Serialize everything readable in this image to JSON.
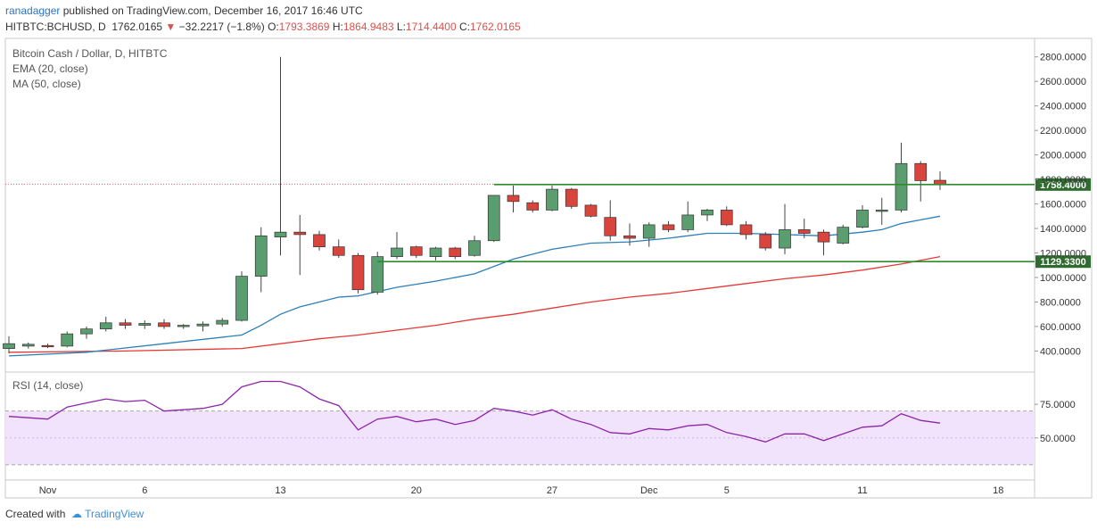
{
  "header": {
    "author": "ranadagger",
    "published_text": "published on TradingView.com, December 16, 2017 16:46 UTC",
    "symbol": "HITBTC:BCHUSD, D",
    "last": "1762.0165",
    "change_arrow": "▼",
    "change": "−32.2217 (−1.8%)",
    "o_label": "O:",
    "o_value": "1793.3869",
    "h_label": "H:",
    "h_value": "1864.9483",
    "l_label": "L:",
    "l_value": "1714.4400",
    "c_label": "C:",
    "c_value": "1762.0165"
  },
  "footer": {
    "created_with": "Created with",
    "brand": "TradingView"
  },
  "colors": {
    "up": "#5a9e6f",
    "down": "#d9453d",
    "ema": "#2c7fb8",
    "ma": "#e53935",
    "rsi": "#8e24aa",
    "level": "#2e8b2e"
  },
  "chart_data": [
    {
      "type": "candlestick",
      "title": "Bitcoin Cash / Dollar, D, HITBTC",
      "indicators": [
        "EMA (20, close)",
        "MA (50, close)"
      ],
      "ylim": [
        250,
        2900
      ],
      "ytick_values": [
        400,
        600,
        800,
        1000,
        1200,
        1400,
        1600,
        1800,
        2000,
        2200,
        2400,
        2600,
        2800
      ],
      "ytick_labels": [
        "400.0000",
        "600.0000",
        "800.0000",
        "1000.0000",
        "1200.0000",
        "1400.0000",
        "1600.0000",
        "1800.0000",
        "2000.0000",
        "2200.0000",
        "2400.0000",
        "2600.0000",
        "2800.0000"
      ],
      "xtick_labels": [
        "Nov",
        "6",
        "13",
        "20",
        "27",
        "Dec",
        "5",
        "11",
        "18"
      ],
      "xtick_days": [
        2,
        7,
        14,
        21,
        28,
        33,
        37,
        44,
        51
      ],
      "candles": [
        {
          "d": 0,
          "o": 420,
          "h": 520,
          "l": 380,
          "c": 460
        },
        {
          "d": 1,
          "o": 440,
          "h": 470,
          "l": 420,
          "c": 455
        },
        {
          "d": 2,
          "o": 445,
          "h": 460,
          "l": 425,
          "c": 435
        },
        {
          "d": 3,
          "o": 440,
          "h": 560,
          "l": 430,
          "c": 540
        },
        {
          "d": 4,
          "o": 540,
          "h": 600,
          "l": 500,
          "c": 580
        },
        {
          "d": 5,
          "o": 580,
          "h": 680,
          "l": 560,
          "c": 630
        },
        {
          "d": 6,
          "o": 630,
          "h": 660,
          "l": 580,
          "c": 610
        },
        {
          "d": 7,
          "o": 610,
          "h": 650,
          "l": 580,
          "c": 625
        },
        {
          "d": 8,
          "o": 630,
          "h": 660,
          "l": 580,
          "c": 600
        },
        {
          "d": 9,
          "o": 600,
          "h": 620,
          "l": 580,
          "c": 610
        },
        {
          "d": 10,
          "o": 605,
          "h": 640,
          "l": 560,
          "c": 620
        },
        {
          "d": 11,
          "o": 620,
          "h": 670,
          "l": 600,
          "c": 650
        },
        {
          "d": 12,
          "o": 650,
          "h": 1050,
          "l": 640,
          "c": 1010
        },
        {
          "d": 13,
          "o": 1010,
          "h": 1410,
          "l": 880,
          "c": 1340
        },
        {
          "d": 14,
          "o": 1330,
          "h": 2800,
          "l": 1180,
          "c": 1370
        },
        {
          "d": 15,
          "o": 1370,
          "h": 1510,
          "l": 1020,
          "c": 1350
        },
        {
          "d": 16,
          "o": 1350,
          "h": 1380,
          "l": 1220,
          "c": 1250
        },
        {
          "d": 17,
          "o": 1250,
          "h": 1310,
          "l": 1160,
          "c": 1180
        },
        {
          "d": 18,
          "o": 1180,
          "h": 1200,
          "l": 870,
          "c": 900
        },
        {
          "d": 19,
          "o": 880,
          "h": 1210,
          "l": 860,
          "c": 1170
        },
        {
          "d": 20,
          "o": 1170,
          "h": 1370,
          "l": 1150,
          "c": 1240
        },
        {
          "d": 21,
          "o": 1250,
          "h": 1260,
          "l": 1160,
          "c": 1180
        },
        {
          "d": 22,
          "o": 1170,
          "h": 1250,
          "l": 1140,
          "c": 1240
        },
        {
          "d": 23,
          "o": 1240,
          "h": 1250,
          "l": 1150,
          "c": 1170
        },
        {
          "d": 24,
          "o": 1180,
          "h": 1340,
          "l": 1170,
          "c": 1300
        },
        {
          "d": 25,
          "o": 1300,
          "h": 1670,
          "l": 1290,
          "c": 1670
        },
        {
          "d": 26,
          "o": 1670,
          "h": 1750,
          "l": 1530,
          "c": 1620
        },
        {
          "d": 27,
          "o": 1610,
          "h": 1630,
          "l": 1530,
          "c": 1550
        },
        {
          "d": 28,
          "o": 1550,
          "h": 1750,
          "l": 1540,
          "c": 1720
        },
        {
          "d": 29,
          "o": 1720,
          "h": 1730,
          "l": 1560,
          "c": 1580
        },
        {
          "d": 30,
          "o": 1590,
          "h": 1600,
          "l": 1490,
          "c": 1500
        },
        {
          "d": 31,
          "o": 1490,
          "h": 1630,
          "l": 1300,
          "c": 1340
        },
        {
          "d": 32,
          "o": 1340,
          "h": 1440,
          "l": 1260,
          "c": 1320
        },
        {
          "d": 33,
          "o": 1320,
          "h": 1450,
          "l": 1250,
          "c": 1430
        },
        {
          "d": 34,
          "o": 1430,
          "h": 1460,
          "l": 1370,
          "c": 1390
        },
        {
          "d": 35,
          "o": 1390,
          "h": 1620,
          "l": 1370,
          "c": 1510
        },
        {
          "d": 36,
          "o": 1510,
          "h": 1560,
          "l": 1460,
          "c": 1550
        },
        {
          "d": 37,
          "o": 1550,
          "h": 1580,
          "l": 1420,
          "c": 1430
        },
        {
          "d": 38,
          "o": 1430,
          "h": 1460,
          "l": 1310,
          "c": 1350
        },
        {
          "d": 39,
          "o": 1350,
          "h": 1370,
          "l": 1220,
          "c": 1240
        },
        {
          "d": 40,
          "o": 1240,
          "h": 1600,
          "l": 1190,
          "c": 1390
        },
        {
          "d": 41,
          "o": 1390,
          "h": 1480,
          "l": 1320,
          "c": 1360
        },
        {
          "d": 42,
          "o": 1370,
          "h": 1390,
          "l": 1180,
          "c": 1290
        },
        {
          "d": 43,
          "o": 1280,
          "h": 1430,
          "l": 1270,
          "c": 1410
        },
        {
          "d": 44,
          "o": 1410,
          "h": 1590,
          "l": 1400,
          "c": 1550
        },
        {
          "d": 45,
          "o": 1545,
          "h": 1650,
          "l": 1430,
          "c": 1550
        },
        {
          "d": 46,
          "o": 1550,
          "h": 2100,
          "l": 1530,
          "c": 1930
        },
        {
          "d": 47,
          "o": 1930,
          "h": 1950,
          "l": 1620,
          "c": 1790
        },
        {
          "d": 48,
          "o": 1793,
          "h": 1865,
          "l": 1714,
          "c": 1762
        }
      ],
      "ema20": [
        {
          "d": 0,
          "v": 360
        },
        {
          "d": 4,
          "v": 390
        },
        {
          "d": 8,
          "v": 460
        },
        {
          "d": 12,
          "v": 530
        },
        {
          "d": 13,
          "v": 610
        },
        {
          "d": 14,
          "v": 700
        },
        {
          "d": 15,
          "v": 760
        },
        {
          "d": 16,
          "v": 800
        },
        {
          "d": 17,
          "v": 840
        },
        {
          "d": 18,
          "v": 850
        },
        {
          "d": 20,
          "v": 920
        },
        {
          "d": 22,
          "v": 970
        },
        {
          "d": 24,
          "v": 1030
        },
        {
          "d": 26,
          "v": 1150
        },
        {
          "d": 28,
          "v": 1230
        },
        {
          "d": 30,
          "v": 1280
        },
        {
          "d": 32,
          "v": 1290
        },
        {
          "d": 34,
          "v": 1320
        },
        {
          "d": 36,
          "v": 1360
        },
        {
          "d": 38,
          "v": 1360
        },
        {
          "d": 40,
          "v": 1350
        },
        {
          "d": 42,
          "v": 1340
        },
        {
          "d": 44,
          "v": 1370
        },
        {
          "d": 45,
          "v": 1390
        },
        {
          "d": 46,
          "v": 1440
        },
        {
          "d": 47,
          "v": 1470
        },
        {
          "d": 48,
          "v": 1500
        }
      ],
      "ma50": [
        {
          "d": 0,
          "v": 390
        },
        {
          "d": 6,
          "v": 400
        },
        {
          "d": 12,
          "v": 420
        },
        {
          "d": 14,
          "v": 460
        },
        {
          "d": 16,
          "v": 500
        },
        {
          "d": 18,
          "v": 530
        },
        {
          "d": 20,
          "v": 570
        },
        {
          "d": 22,
          "v": 610
        },
        {
          "d": 24,
          "v": 660
        },
        {
          "d": 26,
          "v": 700
        },
        {
          "d": 28,
          "v": 750
        },
        {
          "d": 30,
          "v": 800
        },
        {
          "d": 32,
          "v": 840
        },
        {
          "d": 34,
          "v": 870
        },
        {
          "d": 36,
          "v": 910
        },
        {
          "d": 38,
          "v": 950
        },
        {
          "d": 40,
          "v": 990
        },
        {
          "d": 42,
          "v": 1020
        },
        {
          "d": 44,
          "v": 1060
        },
        {
          "d": 46,
          "v": 1110
        },
        {
          "d": 48,
          "v": 1170
        }
      ],
      "levels": [
        {
          "value": 1758.4,
          "label": "1758.4000",
          "from_day": 25
        },
        {
          "value": 1129.33,
          "label": "1129.3300",
          "from_day": 19
        }
      ],
      "last_price_line": 1762
    },
    {
      "type": "line",
      "title": "RSI (14, close)",
      "ylim": [
        20,
        97
      ],
      "ytick_values": [
        50,
        75
      ],
      "ytick_labels": [
        "50.0000",
        "75.0000"
      ],
      "band": [
        30,
        70
      ],
      "series": [
        {
          "values": [
            {
              "d": 0,
              "v": 66
            },
            {
              "d": 2,
              "v": 64
            },
            {
              "d": 3,
              "v": 73
            },
            {
              "d": 4,
              "v": 76
            },
            {
              "d": 5,
              "v": 79
            },
            {
              "d": 6,
              "v": 77
            },
            {
              "d": 7,
              "v": 78
            },
            {
              "d": 8,
              "v": 70
            },
            {
              "d": 9,
              "v": 71
            },
            {
              "d": 10,
              "v": 72
            },
            {
              "d": 11,
              "v": 75
            },
            {
              "d": 12,
              "v": 88
            },
            {
              "d": 13,
              "v": 92
            },
            {
              "d": 14,
              "v": 92
            },
            {
              "d": 15,
              "v": 88
            },
            {
              "d": 16,
              "v": 79
            },
            {
              "d": 17,
              "v": 74
            },
            {
              "d": 18,
              "v": 56
            },
            {
              "d": 19,
              "v": 64
            },
            {
              "d": 20,
              "v": 66
            },
            {
              "d": 21,
              "v": 62
            },
            {
              "d": 22,
              "v": 64
            },
            {
              "d": 23,
              "v": 60
            },
            {
              "d": 24,
              "v": 63
            },
            {
              "d": 25,
              "v": 72
            },
            {
              "d": 26,
              "v": 70
            },
            {
              "d": 27,
              "v": 67
            },
            {
              "d": 28,
              "v": 71
            },
            {
              "d": 29,
              "v": 64
            },
            {
              "d": 30,
              "v": 60
            },
            {
              "d": 31,
              "v": 54
            },
            {
              "d": 32,
              "v": 53
            },
            {
              "d": 33,
              "v": 57
            },
            {
              "d": 34,
              "v": 56
            },
            {
              "d": 35,
              "v": 59
            },
            {
              "d": 36,
              "v": 60
            },
            {
              "d": 37,
              "v": 54
            },
            {
              "d": 38,
              "v": 51
            },
            {
              "d": 39,
              "v": 47
            },
            {
              "d": 40,
              "v": 53
            },
            {
              "d": 41,
              "v": 53
            },
            {
              "d": 42,
              "v": 48
            },
            {
              "d": 43,
              "v": 53
            },
            {
              "d": 44,
              "v": 58
            },
            {
              "d": 45,
              "v": 59
            },
            {
              "d": 46,
              "v": 68
            },
            {
              "d": 47,
              "v": 63
            },
            {
              "d": 48,
              "v": 61
            }
          ]
        }
      ]
    }
  ]
}
